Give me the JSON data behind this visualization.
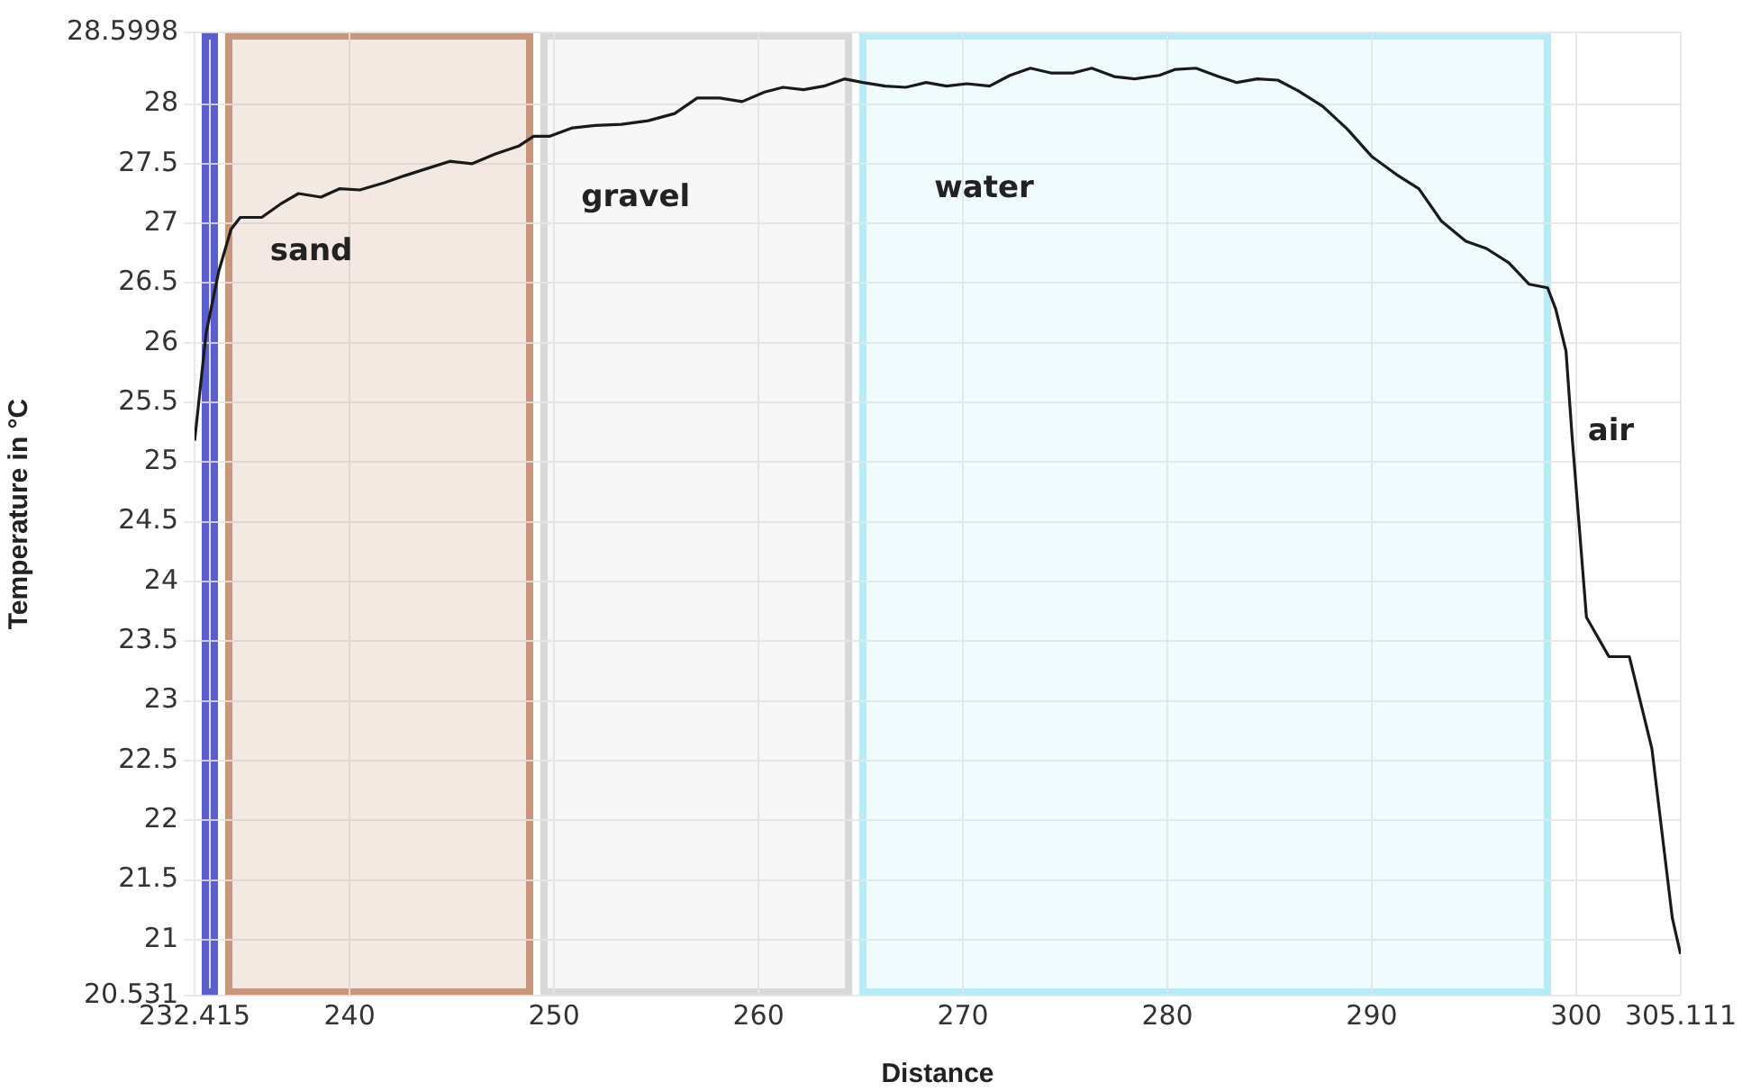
{
  "chart_data": {
    "type": "line",
    "xlabel": "Distance",
    "ylabel": "Temperature in °C",
    "x": [
      232.42,
      232.98,
      233.6,
      234.2,
      234.65,
      235.7,
      236.6,
      237.5,
      238.6,
      239.5,
      240.5,
      241.7,
      242.7,
      243.8,
      244.9,
      246,
      247.1,
      248.3,
      249.0,
      249.8,
      250.9,
      252,
      253.3,
      254.6,
      255.9,
      257,
      258.1,
      259.2,
      260.3,
      261.2,
      262.2,
      263.2,
      264.2,
      265.1,
      266.2,
      267.2,
      268.2,
      269.2,
      270.2,
      271.3,
      272.3,
      273.3,
      274.3,
      275.4,
      276.3,
      277.4,
      278.4,
      279.6,
      280.4,
      281.4,
      282.5,
      283.4,
      284.4,
      285.4,
      286.4,
      287.6,
      288.8,
      290,
      291.2,
      292.3,
      293.4,
      294.6,
      295.6,
      296.7,
      297.7,
      298.6,
      299.0,
      299.5,
      299.8,
      300.5,
      301.6,
      302.6,
      303.7,
      304.7,
      305.1
    ],
    "series": [
      {
        "color": "#1a1a1a",
        "values": [
          25.18,
          26.08,
          26.6,
          26.95,
          27.05,
          27.05,
          27.16,
          27.25,
          27.22,
          27.29,
          27.28,
          27.34,
          27.4,
          27.46,
          27.52,
          27.5,
          27.58,
          27.65,
          27.73,
          27.73,
          27.8,
          27.82,
          27.83,
          27.86,
          27.92,
          28.05,
          28.05,
          28.02,
          28.1,
          28.14,
          28.12,
          28.15,
          28.21,
          28.18,
          28.15,
          28.14,
          28.18,
          28.15,
          28.17,
          28.15,
          28.24,
          28.3,
          28.26,
          28.26,
          28.3,
          28.23,
          28.21,
          28.24,
          28.29,
          28.3,
          28.23,
          28.18,
          28.21,
          28.2,
          28.11,
          27.98,
          27.79,
          27.56,
          27.41,
          27.29,
          27.02,
          26.85,
          26.79,
          26.67,
          26.49,
          26.46,
          26.28,
          25.93,
          25.21,
          23.7,
          23.37,
          23.37,
          22.6,
          21.18,
          20.88
        ]
      }
    ],
    "xlim": [
      232.415,
      305.111
    ],
    "xticks": [
      232.415,
      240,
      250,
      260,
      270,
      280,
      290,
      300,
      305.111
    ],
    "ylim": [
      20.531,
      28.5998
    ],
    "yticks": [
      20.531,
      21,
      21.5,
      22,
      22.5,
      23,
      23.5,
      24,
      24.5,
      25,
      25.5,
      26,
      26.5,
      27,
      27.5,
      28,
      28.5998
    ],
    "grid": true,
    "marker": "none",
    "line_style": "solid",
    "bands": [
      {
        "axis": "x",
        "from": 232.76,
        "to": 233.55,
        "label": null,
        "color": "#5b5fcf"
      },
      {
        "axis": "x",
        "from": 233.9,
        "to": 249.0,
        "label": "sand",
        "color": "#c8967a"
      },
      {
        "axis": "x",
        "from": 249.3,
        "to": 264.6,
        "label": "gravel",
        "color": "#d9d9d9"
      },
      {
        "axis": "x",
        "from": 264.9,
        "to": 298.8,
        "label": "water",
        "color": "#b8ecf8"
      }
    ],
    "annotations": [
      "air"
    ]
  }
}
